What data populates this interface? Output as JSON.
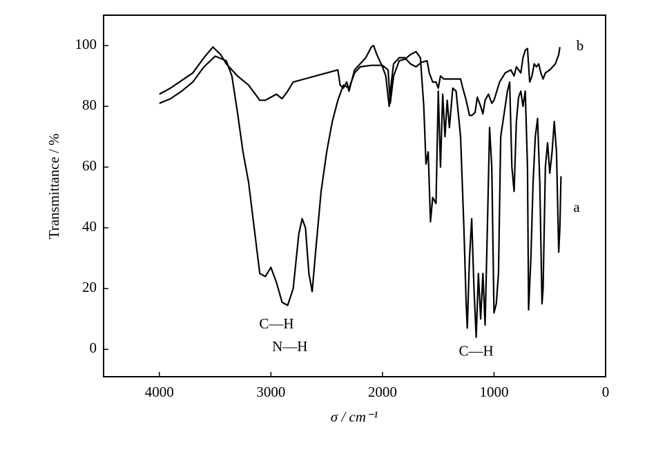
{
  "chart_data": {
    "type": "line",
    "xlabel": "σ / cm⁻¹",
    "ylabel": "Transmittance / %",
    "xlim": [
      4500,
      0
    ],
    "ylim": [
      -9,
      110
    ],
    "xticks": [
      4000,
      3000,
      2000,
      1000,
      0
    ],
    "yticks": [
      0,
      20,
      40,
      60,
      80,
      100
    ],
    "annotations": [
      {
        "text": "C—H",
        "x": 2950,
        "y": 8
      },
      {
        "text": "N—H",
        "x": 2830,
        "y": 0.5
      },
      {
        "text": "C—H",
        "x": 1160,
        "y": -1
      }
    ],
    "series": [
      {
        "name": "a",
        "color": "#000000",
        "x": [
          4000,
          3900,
          3800,
          3700,
          3600,
          3500,
          3400,
          3350,
          3300,
          3250,
          3200,
          3150,
          3100,
          3050,
          3000,
          2950,
          2900,
          2850,
          2800,
          2750,
          2720,
          2690,
          2660,
          2630,
          2600,
          2550,
          2500,
          2450,
          2400,
          2350,
          2300,
          2250,
          2200,
          2100,
          2000,
          1950,
          1930,
          1900,
          1850,
          1800,
          1750,
          1700,
          1660,
          1630,
          1610,
          1590,
          1570,
          1550,
          1520,
          1500,
          1480,
          1460,
          1440,
          1420,
          1400,
          1370,
          1340,
          1300,
          1270,
          1250,
          1240,
          1220,
          1200,
          1180,
          1160,
          1140,
          1120,
          1100,
          1080,
          1060,
          1040,
          1020,
          1000,
          980,
          960,
          940,
          900,
          880,
          860,
          840,
          820,
          800,
          780,
          760,
          740,
          720,
          700,
          690,
          670,
          650,
          630,
          610,
          590,
          570,
          560,
          540,
          520,
          500,
          480,
          460,
          440,
          420,
          410,
          400
        ],
        "values": [
          81,
          82.5,
          85,
          88,
          93,
          96.5,
          95,
          90,
          78,
          65,
          55,
          40,
          25,
          24,
          27,
          22,
          15.5,
          14.5,
          20,
          38,
          43,
          40,
          25,
          19,
          32,
          52,
          65,
          75,
          82,
          87,
          86,
          91,
          93,
          93.5,
          93.5,
          92,
          81,
          90,
          95,
          95.5,
          97,
          98,
          96,
          80,
          61,
          65,
          42,
          50,
          48,
          85,
          60,
          84,
          70,
          82,
          73,
          86,
          85,
          70,
          40,
          15,
          7,
          30,
          43,
          20,
          4,
          25,
          10,
          25,
          8,
          40,
          73,
          60,
          12,
          15,
          25,
          70,
          80,
          85,
          88,
          60,
          52,
          75,
          83,
          85,
          80,
          85,
          60,
          13,
          30,
          55,
          70,
          76,
          55,
          15,
          20,
          60,
          68,
          58,
          65,
          75,
          65,
          32,
          40,
          57
        ]
      },
      {
        "name": "b",
        "color": "#000000",
        "x": [
          4000,
          3900,
          3800,
          3700,
          3600,
          3520,
          3450,
          3400,
          3300,
          3200,
          3100,
          3050,
          3000,
          2950,
          2900,
          2850,
          2800,
          2700,
          2600,
          2500,
          2400,
          2380,
          2350,
          2320,
          2300,
          2250,
          2200,
          2150,
          2100,
          2080,
          2050,
          2000,
          1970,
          1940,
          1920,
          1900,
          1850,
          1800,
          1750,
          1700,
          1650,
          1600,
          1580,
          1550,
          1520,
          1500,
          1480,
          1450,
          1400,
          1350,
          1300,
          1280,
          1250,
          1220,
          1200,
          1170,
          1150,
          1120,
          1100,
          1080,
          1050,
          1020,
          1000,
          950,
          900,
          850,
          820,
          800,
          760,
          740,
          720,
          700,
          680,
          660,
          640,
          620,
          600,
          580,
          560,
          540,
          500,
          450,
          420,
          410
        ],
        "values": [
          84,
          86,
          88.5,
          91,
          96,
          99.5,
          97,
          94,
          90,
          87,
          82,
          82,
          83,
          84,
          82.5,
          85,
          88,
          89,
          90,
          91,
          92,
          87,
          86,
          88,
          85,
          92,
          94,
          96,
          99.5,
          100,
          97,
          93,
          90,
          80,
          88,
          94,
          96,
          96,
          94,
          93,
          94.5,
          95,
          91,
          88,
          88,
          86,
          90,
          89,
          89,
          89,
          89,
          86,
          82,
          77,
          77,
          78,
          83,
          80,
          77.5,
          82,
          84,
          81,
          82,
          88,
          91,
          92,
          90,
          93,
          91,
          96,
          98.5,
          99,
          88,
          90,
          94,
          93,
          94,
          91,
          89,
          91,
          92,
          94,
          97,
          99.5
        ]
      }
    ]
  }
}
